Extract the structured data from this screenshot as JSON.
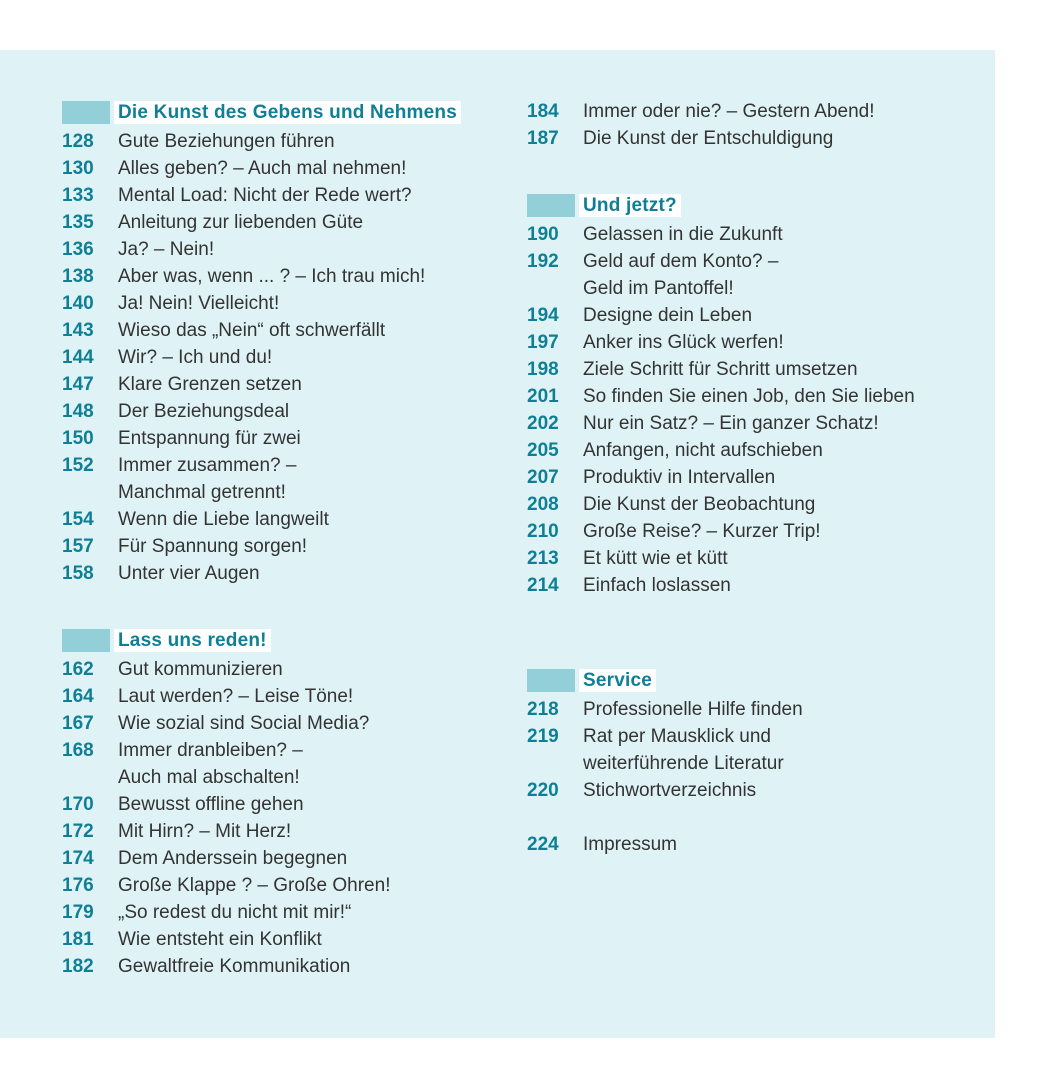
{
  "colors": {
    "background": "#dff3f6",
    "accent": "#0f7f95",
    "bar": "#93cfd9"
  },
  "sections": [
    {
      "title": "Die Kunst des Gebens und Nehmens",
      "items": [
        {
          "page": "128",
          "text": "Gute Beziehungen führen"
        },
        {
          "page": "130",
          "text": "Alles geben? – Auch mal nehmen!"
        },
        {
          "page": "133",
          "text": "Mental Load: Nicht der Rede wert?"
        },
        {
          "page": "135",
          "text": "Anleitung zur liebenden Güte"
        },
        {
          "page": "136",
          "text": "Ja? – Nein!"
        },
        {
          "page": "138",
          "text": "Aber was, wenn ... ? – Ich trau mich!"
        },
        {
          "page": "140",
          "text": "Ja! Nein! Vielleicht!"
        },
        {
          "page": "143",
          "text": "Wieso das „Nein“ oft schwerfällt"
        },
        {
          "page": "144",
          "text": "Wir? – Ich und du!"
        },
        {
          "page": "147",
          "text": "Klare Grenzen setzen"
        },
        {
          "page": "148",
          "text": "Der Beziehungsdeal"
        },
        {
          "page": "150",
          "text": "Entspannung für zwei"
        },
        {
          "page": "152",
          "text": "Immer zusammen? –\nManchmal getrennt!"
        },
        {
          "page": "154",
          "text": "Wenn die Liebe langweilt"
        },
        {
          "page": "157",
          "text": "Für Spannung sorgen!"
        },
        {
          "page": "158",
          "text": "Unter vier Augen"
        }
      ]
    },
    {
      "title": "Lass uns reden!",
      "items": [
        {
          "page": "162",
          "text": "Gut kommunizieren"
        },
        {
          "page": "164",
          "text": "Laut werden? – Leise Töne!"
        },
        {
          "page": "167",
          "text": "Wie sozial sind Social Media?"
        },
        {
          "page": "168",
          "text": "Immer dranbleiben? –\nAuch mal abschalten!"
        },
        {
          "page": "170",
          "text": "Bewusst offline gehen"
        },
        {
          "page": "172",
          "text": "Mit Hirn? – Mit Herz!"
        },
        {
          "page": "174",
          "text": "Dem Anderssein begegnen"
        },
        {
          "page": "176",
          "text": "Große Klappe ? – Große Ohren!"
        },
        {
          "page": "179",
          "text": "„So redest du nicht mit mir!“"
        },
        {
          "page": "181",
          "text": "Wie entsteht ein Konflikt"
        },
        {
          "page": "182",
          "text": "Gewaltfreie Kommunikation"
        },
        {
          "page": "184",
          "text": "Immer oder nie? – Gestern Abend!"
        },
        {
          "page": "187",
          "text": "Die Kunst der Entschuldigung"
        }
      ]
    },
    {
      "title": "Und jetzt?",
      "items": [
        {
          "page": "190",
          "text": "Gelassen in die Zukunft"
        },
        {
          "page": "192",
          "text": "Geld auf dem Konto? –\nGeld im Pantoffel!"
        },
        {
          "page": "194",
          "text": "Designe dein Leben"
        },
        {
          "page": "197",
          "text": "Anker ins Glück werfen!"
        },
        {
          "page": "198",
          "text": "Ziele Schritt für Schritt umsetzen"
        },
        {
          "page": "201",
          "text": "So finden Sie einen Job, den Sie lieben"
        },
        {
          "page": "202",
          "text": "Nur ein Satz? – Ein ganzer Schatz!"
        },
        {
          "page": "205",
          "text": "Anfangen, nicht aufschieben"
        },
        {
          "page": "207",
          "text": "Produktiv in Intervallen"
        },
        {
          "page": "208",
          "text": "Die Kunst der Beobachtung"
        },
        {
          "page": "210",
          "text": "Große Reise? – Kurzer Trip!"
        },
        {
          "page": "213",
          "text": "Et kütt wie et kütt"
        },
        {
          "page": "214",
          "text": "Einfach loslassen"
        }
      ]
    },
    {
      "title": "Service",
      "items": [
        {
          "page": "218",
          "text": "Professionelle Hilfe finden"
        },
        {
          "page": "219",
          "text": "Rat per Mausklick und\nweiterführende Literatur"
        },
        {
          "page": "220",
          "text": "Stichwortverzeichnis"
        },
        {
          "page": "224",
          "text": "Impressum"
        }
      ]
    }
  ]
}
